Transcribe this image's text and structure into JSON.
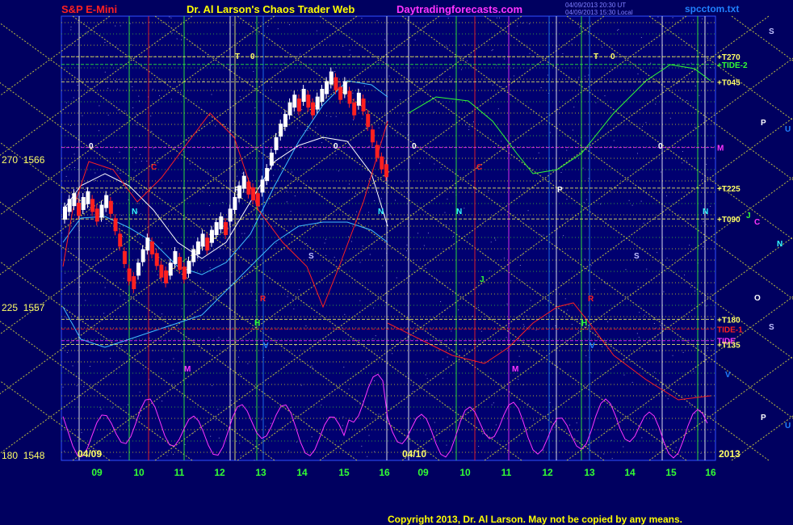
{
  "header": {
    "title_left": "S&P E-Mini",
    "title_center": "Dr. Al Larson's Chaos Trader Web",
    "site": "Daytradingforecasts.com",
    "timestamp1": "04/09/2013 20:30 UT",
    "timestamp2": "04/09/2013 15:30 Local",
    "file": "spcctom.txt"
  },
  "colors": {
    "background": "#000060",
    "plot_bg": "#000070",
    "title_left": "#ff2020",
    "title_center": "#ffff00",
    "site": "#ff33ff",
    "file": "#2080ff",
    "tide": "#ff33ff",
    "tide1": "#ff2020",
    "tide2": "#33ff33"
  },
  "copyright": "Copyright 2013, Dr. Al Larson. May not be copied by any means.",
  "chart_data": {
    "type": "candlestick",
    "title": "S&P E-Mini",
    "y_axis_labels": [
      {
        "angle": "270",
        "price": "1566"
      },
      {
        "angle": "225",
        "price": "1557"
      },
      {
        "angle": "180",
        "price": "1548"
      }
    ],
    "ylim": [
      1548,
      1571
    ],
    "x_ticks": [
      "09",
      "10",
      "11",
      "12",
      "13",
      "14",
      "15",
      "16",
      "09",
      "10",
      "11",
      "12",
      "13",
      "14",
      "15",
      "16"
    ],
    "date_labels": [
      "04/09",
      "04/10",
      "2013"
    ],
    "price_bars": [
      1560.8,
      1561.2,
      1561.5,
      1561.0,
      1561.3,
      1561.6,
      1561.2,
      1560.7,
      1560.9,
      1561.4,
      1561.1,
      1560.2,
      1559.4,
      1558.5,
      1557.6,
      1557.2,
      1557.9,
      1558.6,
      1559.2,
      1559.0,
      1558.4,
      1557.8,
      1557.5,
      1557.9,
      1558.5,
      1558.2,
      1557.7,
      1558.0,
      1558.6,
      1559.0,
      1559.4,
      1559.2,
      1559.6,
      1560.0,
      1560.3,
      1560.0,
      1560.7,
      1561.3,
      1561.9,
      1562.4,
      1562.1,
      1561.8,
      1561.5,
      1562.2,
      1562.8,
      1563.6,
      1564.4,
      1565.1,
      1565.6,
      1566.2,
      1566.6,
      1566.4,
      1566.9,
      1566.6,
      1566.2,
      1566.5,
      1566.9,
      1567.3,
      1567.8,
      1567.5,
      1567.0,
      1567.3,
      1566.8,
      1566.2,
      1566.7,
      1566.4,
      1565.6,
      1564.8,
      1564.0,
      1563.4,
      1563.0
    ],
    "price_levels": [
      {
        "label": "+T270",
        "value": 1568.9,
        "color": "#ffff66"
      },
      {
        "label": "+TIDE-2",
        "value": 1568.5,
        "color": "#33ff33"
      },
      {
        "label": "+T045",
        "value": 1567.6,
        "color": "#ffff66"
      },
      {
        "label": "M",
        "value": 1564.2,
        "color": "#ff33ff"
      },
      {
        "label": "+T225",
        "value": 1562.1,
        "color": "#ffff66"
      },
      {
        "label": "+T090",
        "value": 1560.5,
        "color": "#ffff66"
      },
      {
        "label": "+T180",
        "value": 1555.3,
        "color": "#ffff66"
      },
      {
        "label": "TIDE-1",
        "value": 1554.8,
        "color": "#ff2020"
      },
      {
        "label": "TIDE",
        "value": 1554.2,
        "color": "#ff33ff"
      },
      {
        "label": "+T135",
        "value": 1554.0,
        "color": "#ffff66"
      }
    ],
    "planet_markers": [
      {
        "label": "T",
        "color": "#ffff66"
      },
      {
        "label": "0",
        "color": "#ffff66"
      },
      {
        "label": "T",
        "color": "#ffff66"
      },
      {
        "label": "0",
        "color": "#ffff66"
      },
      {
        "label": "0",
        "color": "#ffffff"
      },
      {
        "label": "0",
        "color": "#ffffff"
      },
      {
        "label": "0",
        "color": "#ffffff"
      },
      {
        "label": "0",
        "color": "#ffffff"
      },
      {
        "label": "C",
        "color": "#ff2020"
      },
      {
        "label": "C",
        "color": "#ff2020"
      },
      {
        "label": "P",
        "color": "#ffffff"
      },
      {
        "label": "P",
        "color": "#ffffff"
      },
      {
        "label": "N",
        "color": "#33ffff"
      },
      {
        "label": "N",
        "color": "#33ffff"
      },
      {
        "label": "N",
        "color": "#33ffff"
      },
      {
        "label": "N",
        "color": "#33ffff"
      },
      {
        "label": "S",
        "color": "#c0c0ff"
      },
      {
        "label": "S",
        "color": "#c0c0ff"
      },
      {
        "label": "J",
        "color": "#33ff33"
      },
      {
        "label": "H",
        "color": "#33ff33"
      },
      {
        "label": "H",
        "color": "#33ff33"
      },
      {
        "label": "V",
        "color": "#2080ff"
      },
      {
        "label": "V",
        "color": "#2080ff"
      },
      {
        "label": "M",
        "color": "#ff33ff"
      },
      {
        "label": "M",
        "color": "#ff33ff"
      },
      {
        "label": "R",
        "color": "#ff2020"
      },
      {
        "label": "R",
        "color": "#ff2020"
      }
    ],
    "right_markers": [
      {
        "label": "S",
        "color": "#c0c0ff"
      },
      {
        "label": "P",
        "color": "#ffffff"
      },
      {
        "label": "U",
        "color": "#2080ff"
      },
      {
        "label": "J",
        "color": "#33ff33"
      },
      {
        "label": "C",
        "color": "#ff33ff"
      },
      {
        "label": "N",
        "color": "#33ffff"
      },
      {
        "label": "O",
        "color": "#ffffff"
      },
      {
        "label": "S",
        "color": "#c0c0ff"
      },
      {
        "label": "V",
        "color": "#2080ff"
      },
      {
        "label": "P",
        "color": "#ffffff"
      },
      {
        "label": "U",
        "color": "#2080ff"
      }
    ]
  }
}
